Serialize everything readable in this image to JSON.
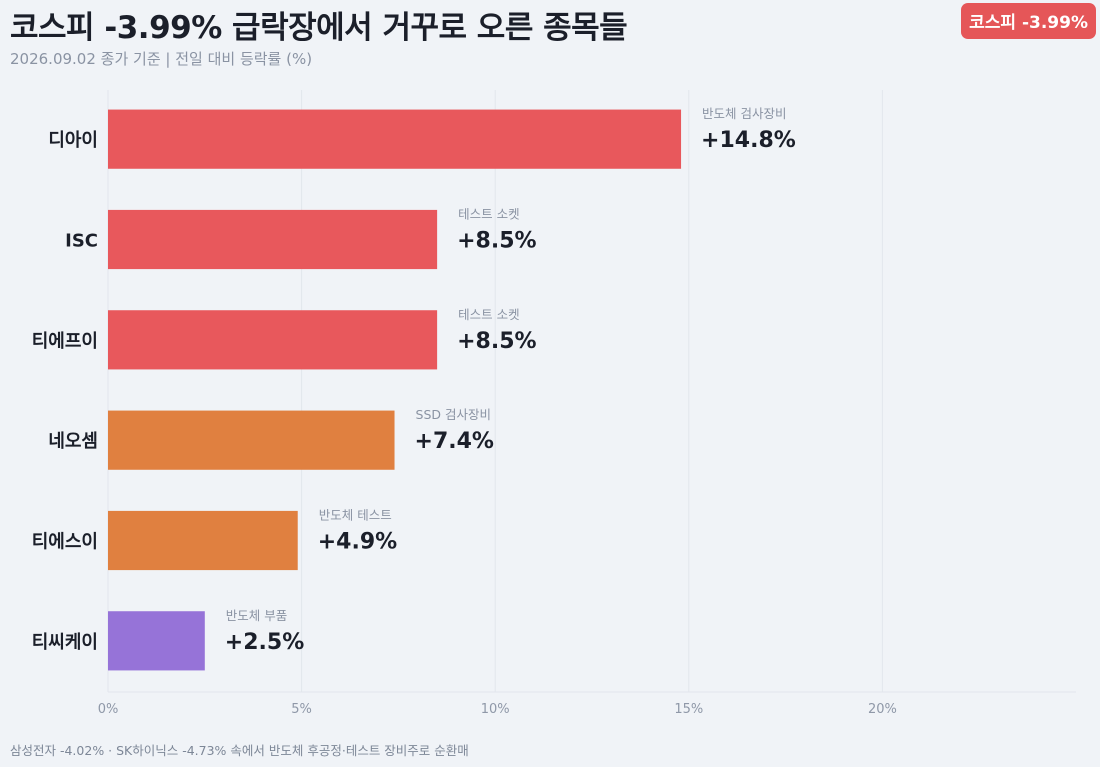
{
  "header": {
    "title": "코스피 -3.99% 급락장에서 거꾸로 오른 종목들",
    "subtitle": "2026.09.02 종가 기준 | 전일 대비 등락률 (%)",
    "badge": "코스피 -3.99%",
    "badge_color": "#e55658"
  },
  "footnote": "삼성전자 -4.02% · SK하이닉스 -4.73% 속에서 반도체 후공정·테스트 장비주로 순환매",
  "chart_data": {
    "type": "bar",
    "orientation": "horizontal",
    "xlim": [
      0,
      25
    ],
    "xticks": [
      0,
      5,
      10,
      15,
      20
    ],
    "xtick_labels": [
      "0%",
      "5%",
      "10%",
      "15%",
      "20%"
    ],
    "grid": true,
    "categories": [
      "디아이",
      "ISC",
      "티에프이",
      "네오셈",
      "티에스이",
      "티씨케이"
    ],
    "values": [
      14.8,
      8.5,
      8.5,
      7.4,
      4.9,
      2.5
    ],
    "value_labels": [
      "+14.8%",
      "+8.5%",
      "+8.5%",
      "+7.4%",
      "+4.9%",
      "+2.5%"
    ],
    "annotations": [
      "반도체 검사장비",
      "테스트 소켓",
      "테스트 소켓",
      "SSD 검사장비",
      "반도체 테스트",
      "반도체 부품"
    ],
    "bar_colors": [
      "#e8585c",
      "#e8585c",
      "#e8585c",
      "#e08040",
      "#e08040",
      "#9673d8"
    ]
  }
}
